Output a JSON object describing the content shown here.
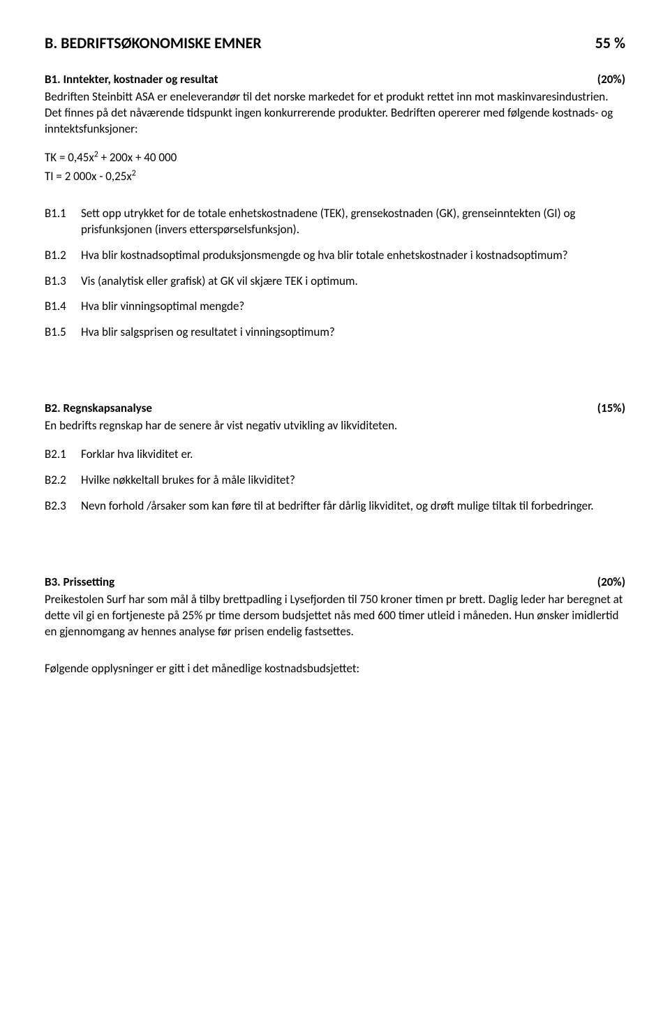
{
  "sectionA": {
    "title": "B. BEDRIFTSØKONOMISKE EMNER",
    "weight": "55 %"
  },
  "b1": {
    "title": "B1. Inntekter, kostnader og resultat",
    "weight": "(20%)",
    "intro1": "Bedriften Steinbitt ASA er eneleverandør til det norske markedet for et produkt rettet inn mot maskinvaresindustrien. Det finnes på det nåværende tidspunkt ingen konkurrerende produkter. Bedriften opererer med følgende kostnads- og inntektsfunksjoner:",
    "eq1_pre": "TK = 0,45x",
    "eq1_post": " + 200x + 40 000",
    "eq2_pre": "TI =  2 000x - 0,25x",
    "items": [
      {
        "id": "B1.1",
        "text": "Sett opp utrykket for de totale enhetskostnadene (TEK), grensekostnaden (GK), grenseinntekten (GI) og prisfunksjonen (invers etterspørselsfunksjon)."
      },
      {
        "id": "B1.2",
        "text": "Hva blir kostnadsoptimal produksjonsmengde og hva blir totale enhetskostnader i kostnadsoptimum?"
      },
      {
        "id": "B1.3",
        "text": "Vis (analytisk eller grafisk) at GK vil skjære TEK i optimum."
      },
      {
        "id": "B1.4",
        "text": "Hva blir vinningsoptimal mengde?"
      },
      {
        "id": "B1.5",
        "text": "Hva blir salgsprisen og resultatet i vinningsoptimum?"
      }
    ]
  },
  "b2": {
    "title": "B2. Regnskapsanalyse",
    "weight": "(15%)",
    "intro": "En bedrifts regnskap har de senere år vist negativ utvikling av likviditeten.",
    "items": [
      {
        "id": "B2.1",
        "text": "Forklar hva likviditet er."
      },
      {
        "id": "B2.2",
        "text": "Hvilke nøkkeltall brukes for å måle likviditet?"
      },
      {
        "id": "B2.3",
        "text": "Nevn forhold /årsaker som kan føre til at bedrifter får dårlig likviditet, og drøft mulige tiltak til forbedringer."
      }
    ]
  },
  "b3": {
    "title": "B3. Prissetting",
    "weight": "(20%)",
    "intro": "Preikestolen Surf har som mål å tilby brettpadling i Lysefjorden til 750 kroner timen pr brett. Daglig leder har beregnet at dette vil gi en fortjeneste på 25% pr time dersom budsjettet nås med 600 timer utleid i måneden.  Hun ønsker imidlertid en gjennomgang av hennes analyse før prisen endelig fastsettes.",
    "closing": "Følgende opplysninger er gitt i det månedlige kostnadsbudsjettet:"
  }
}
